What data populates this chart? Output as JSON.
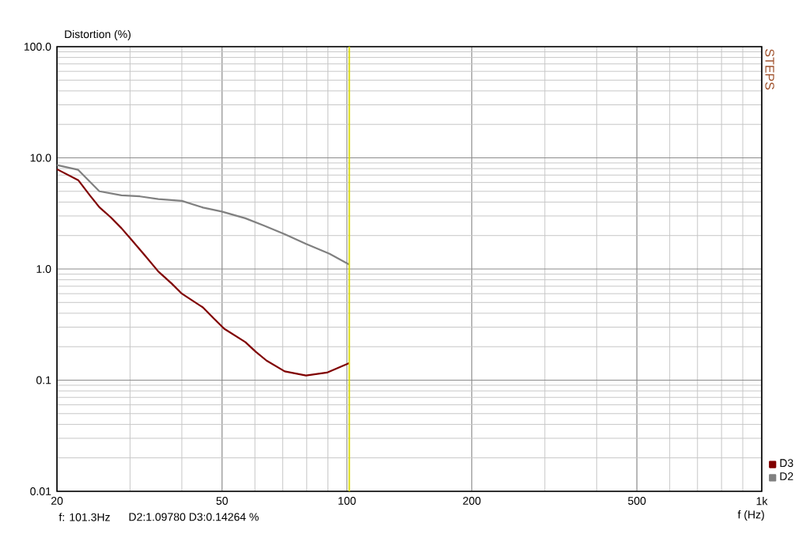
{
  "chart_data": {
    "type": "line",
    "ylabel": "Distortion (%)",
    "xlabel": "f (Hz)",
    "log": "xy",
    "grid": true,
    "legend": "bottom right",
    "xlim": [
      20,
      1000
    ],
    "ylim": [
      0.01,
      100
    ],
    "xticks": [
      20,
      50,
      100,
      200,
      500,
      {
        "value": 1000,
        "label": "1k"
      }
    ],
    "yticks": [
      0.01,
      0.1,
      {
        "value": 1,
        "label": "1.0"
      },
      {
        "value": 10,
        "label": "10.0"
      },
      {
        "value": 100,
        "label": "100.0"
      }
    ],
    "series": [
      {
        "name": "D3",
        "color": "#800000",
        "x": [
          20,
          22.5,
          24,
          25.3,
          27,
          28.6,
          30.1,
          32.6,
          35.1,
          37.8,
          40,
          45,
          47.7,
          50.6,
          56.9,
          60.3,
          64,
          70.8,
          79.7,
          89.5,
          101.2
        ],
        "values": [
          7.9,
          6.3,
          4.6,
          3.6,
          2.9,
          2.33,
          1.87,
          1.32,
          0.95,
          0.74,
          0.6,
          0.45,
          0.36,
          0.29,
          0.22,
          0.18,
          0.15,
          0.12,
          0.11,
          0.117,
          0.142
        ]
      },
      {
        "name": "D2",
        "color": "#808080",
        "x": [
          20,
          22.5,
          25.3,
          28.6,
          31.7,
          35.1,
          40,
          45,
          49.9,
          56.9,
          63,
          70.8,
          79.7,
          90.8,
          101.2
        ],
        "values": [
          8.6,
          7.8,
          5.0,
          4.6,
          4.5,
          4.25,
          4.1,
          3.57,
          3.29,
          2.86,
          2.46,
          2.06,
          1.68,
          1.37,
          1.1
        ]
      }
    ],
    "ref_lines": [
      {
        "axis": "x",
        "value": 101.3,
        "color": "#d8d800"
      }
    ],
    "annotations": [
      "STEPS",
      "f: 101.3Hz",
      "D2:1.09780  D3:0.14264 %"
    ]
  }
}
